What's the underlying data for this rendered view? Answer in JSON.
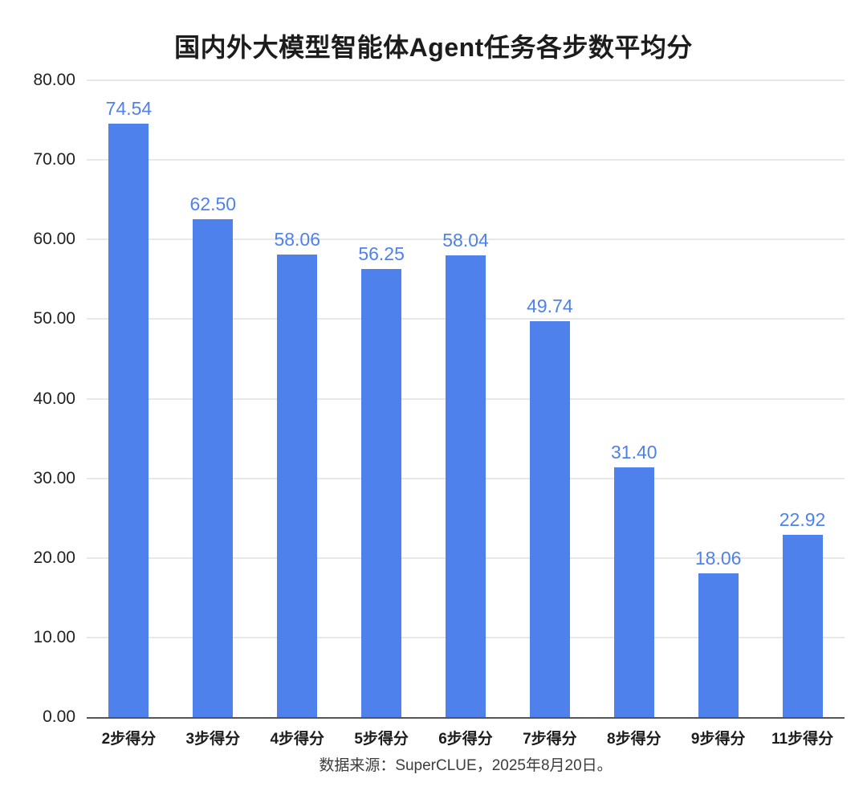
{
  "title": "国内外大模型智能体Agent任务各步数平均分",
  "footer": "数据来源：SuperCLUE，2025年8月20日。",
  "colors": {
    "bar": "#4f81ec",
    "value_label": "#4f81ec",
    "gridline": "#e8e8e8",
    "axis_line": "#555555",
    "title_text": "#1c1c1c",
    "tick_text": "#212121",
    "footer_text": "#3d3d3d",
    "background": "#ffffff"
  },
  "chart_data": {
    "type": "bar",
    "title": "国内外大模型智能体Agent任务各步数平均分",
    "categories": [
      "2步得分",
      "3步得分",
      "4步得分",
      "5步得分",
      "6步得分",
      "7步得分",
      "8步得分",
      "9步得分",
      "11步得分"
    ],
    "values": [
      74.54,
      62.5,
      58.06,
      56.25,
      58.04,
      49.74,
      31.4,
      18.06,
      22.92
    ],
    "value_labels": [
      "74.54",
      "62.50",
      "58.06",
      "56.25",
      "58.04",
      "49.74",
      "31.40",
      "18.06",
      "22.92"
    ],
    "xlabel": "",
    "ylabel": "",
    "ylim": [
      0,
      80
    ],
    "yticks": [
      0,
      10,
      20,
      30,
      40,
      50,
      60,
      70,
      80
    ],
    "ytick_labels": [
      "0.00",
      "10.00",
      "20.00",
      "30.00",
      "40.00",
      "50.00",
      "60.00",
      "70.00",
      "80.00"
    ],
    "grid": true,
    "legend": false,
    "annotation": "数据来源：SuperCLUE，2025年8月20日。"
  }
}
